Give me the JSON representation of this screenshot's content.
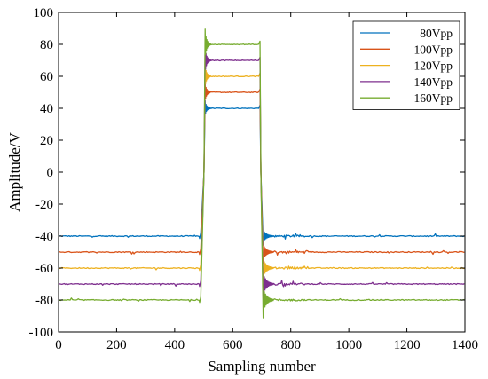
{
  "chart_data": {
    "type": "line",
    "xlabel": "Sampling number",
    "ylabel": "Amplitude/V",
    "xlim": [
      0,
      1400
    ],
    "ylim": [
      -100,
      100
    ],
    "xticks": [
      0,
      200,
      400,
      600,
      800,
      1000,
      1200,
      1400
    ],
    "yticks": [
      -100,
      -80,
      -60,
      -40,
      -20,
      0,
      20,
      40,
      60,
      80,
      100
    ],
    "grid": false,
    "legend_position": "top-right",
    "pulse": {
      "rise_start": 490,
      "rise_end": 505,
      "fall_start": 695,
      "fall_end": 705
    },
    "series": [
      {
        "name": "80Vpp",
        "color": "#0072BD",
        "low": -40,
        "high": 40
      },
      {
        "name": "100Vpp",
        "color": "#D95319",
        "low": -50,
        "high": 50
      },
      {
        "name": "120Vpp",
        "color": "#EDB120",
        "low": -60,
        "high": 60
      },
      {
        "name": "140Vpp",
        "color": "#7E2F8E",
        "low": -70,
        "high": 70
      },
      {
        "name": "160Vpp",
        "color": "#77AC30",
        "low": -80,
        "high": 80
      }
    ]
  }
}
